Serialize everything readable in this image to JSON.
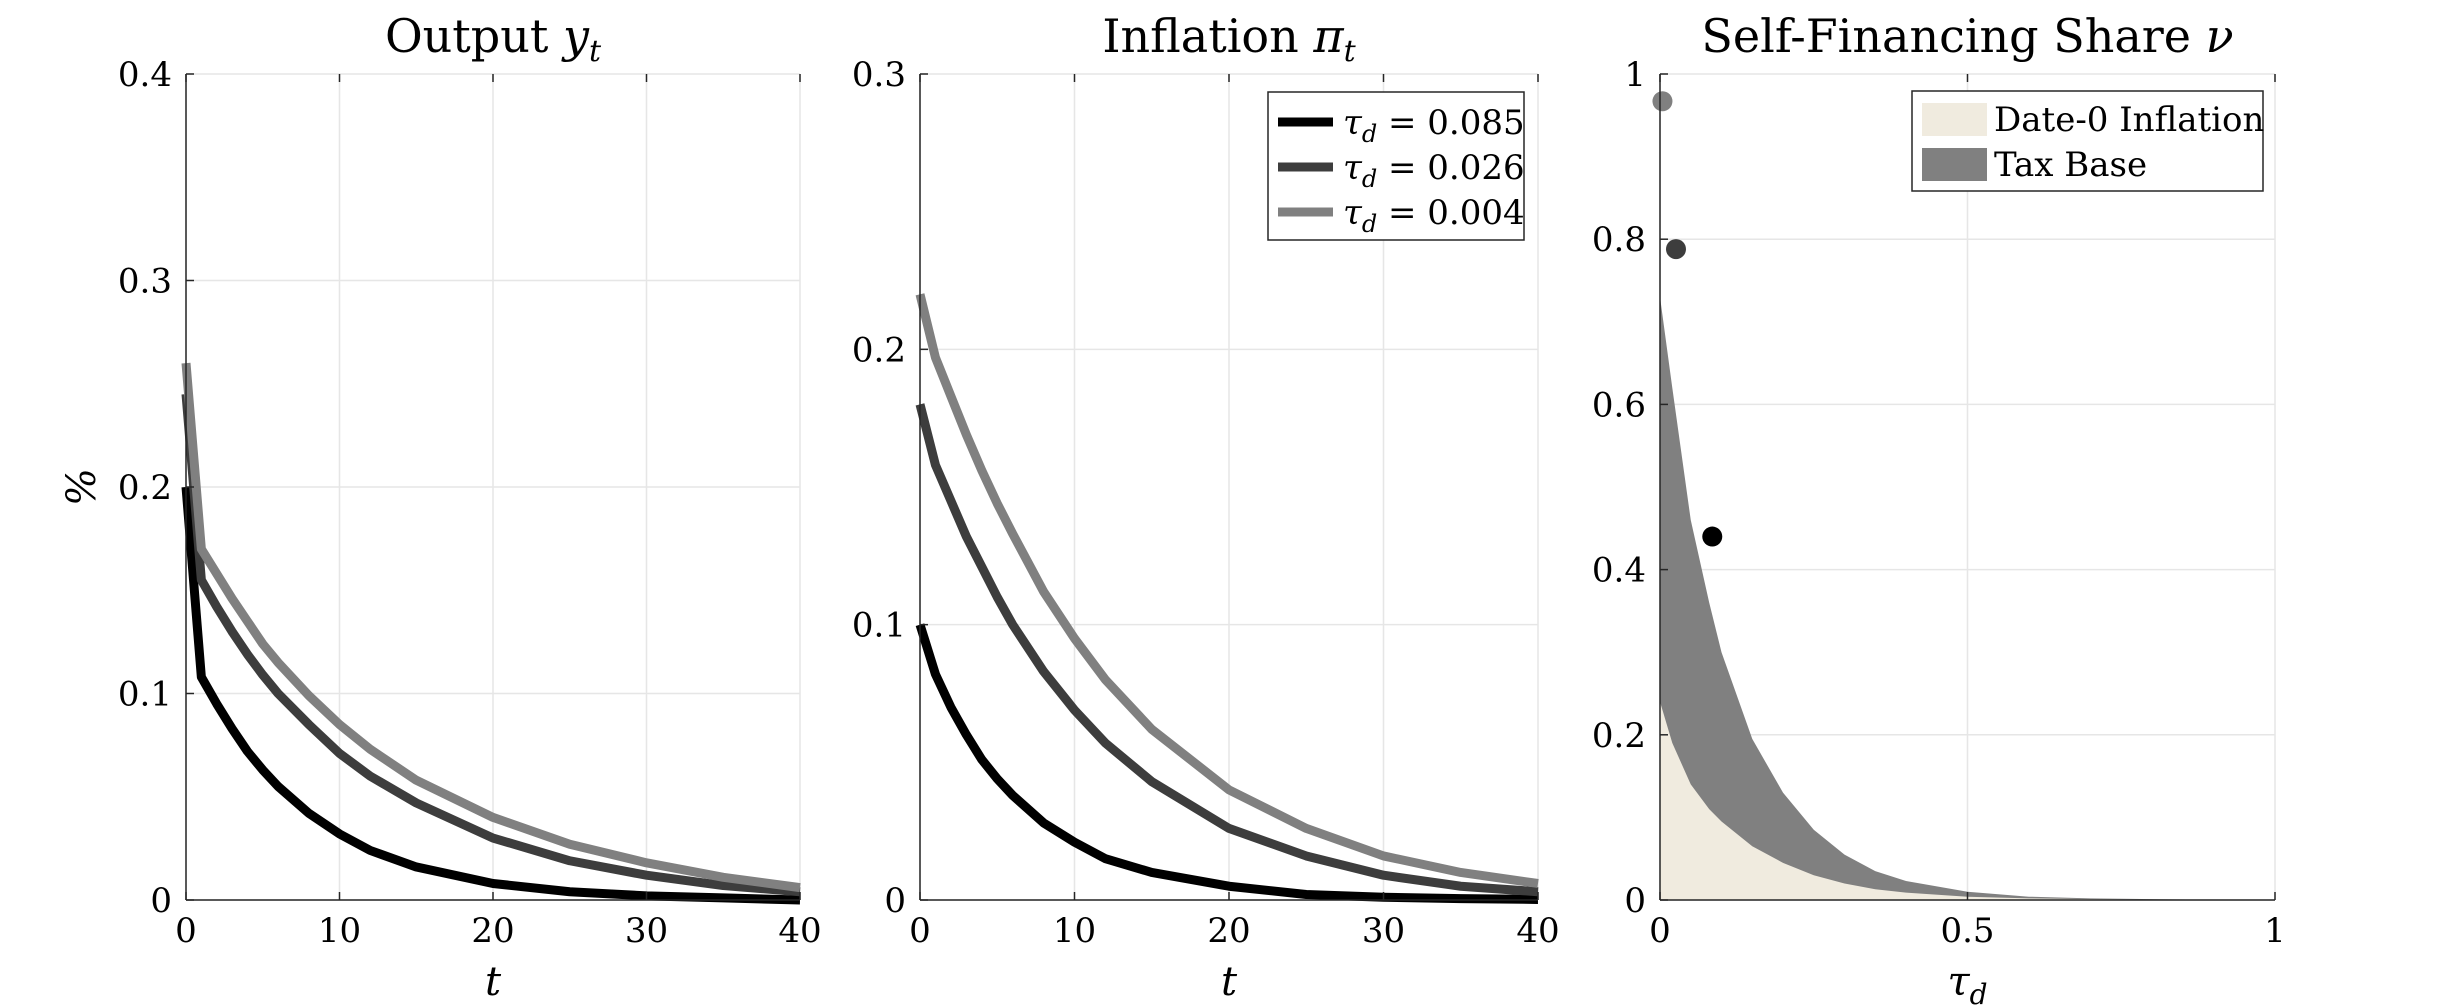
{
  "chart_data": [
    {
      "type": "line",
      "title": "Output yt",
      "title_parts": {
        "base": "Output ",
        "var": "y",
        "sub": "t"
      },
      "xlabel": "t",
      "ylabel": "%",
      "xlim": [
        0,
        40
      ],
      "ylim": [
        0,
        0.4
      ],
      "xticks": [
        0,
        10,
        20,
        30,
        40
      ],
      "xtick_labels": [
        "0",
        "10",
        "20",
        "30",
        "40"
      ],
      "yticks": [
        0,
        0.1,
        0.2,
        0.3,
        0.4
      ],
      "ytick_labels": [
        "0",
        "0.1",
        "0.2",
        "0.3",
        "0.4"
      ],
      "grid": true,
      "legend": "none",
      "series": [
        {
          "color": "#000000",
          "x": [
            0,
            1,
            2,
            3,
            4,
            5,
            6,
            8,
            10,
            12,
            15,
            20,
            25,
            30,
            35,
            40
          ],
          "values": [
            0.2,
            0.108,
            0.095,
            0.083,
            0.072,
            0.063,
            0.055,
            0.042,
            0.032,
            0.024,
            0.016,
            0.008,
            0.004,
            0.002,
            0.001,
            0.0
          ]
        },
        {
          "color": "#3d3d3d",
          "x": [
            0,
            1,
            2,
            3,
            4,
            5,
            6,
            8,
            10,
            12,
            15,
            20,
            25,
            30,
            35,
            40
          ],
          "values": [
            0.245,
            0.155,
            0.142,
            0.13,
            0.119,
            0.109,
            0.1,
            0.085,
            0.071,
            0.06,
            0.047,
            0.03,
            0.019,
            0.012,
            0.007,
            0.004
          ]
        },
        {
          "color": "#808080",
          "x": [
            0,
            1,
            2,
            3,
            4,
            5,
            6,
            8,
            10,
            12,
            15,
            20,
            25,
            30,
            35,
            40
          ],
          "values": [
            0.26,
            0.17,
            0.158,
            0.146,
            0.135,
            0.124,
            0.115,
            0.099,
            0.085,
            0.073,
            0.058,
            0.04,
            0.027,
            0.018,
            0.011,
            0.006
          ]
        }
      ]
    },
    {
      "type": "line",
      "title": "Inflation πt",
      "title_parts": {
        "base": "Inflation ",
        "var": "π",
        "sub": "t"
      },
      "xlabel": "t",
      "ylabel": "",
      "xlim": [
        0,
        40
      ],
      "ylim": [
        0,
        0.3
      ],
      "xticks": [
        0,
        10,
        20,
        30,
        40
      ],
      "xtick_labels": [
        "0",
        "10",
        "20",
        "30",
        "40"
      ],
      "yticks": [
        0,
        0.1,
        0.2,
        0.3
      ],
      "ytick_labels": [
        "0",
        "0.1",
        "0.2",
        "0.3"
      ],
      "grid": true,
      "legend": "top-right",
      "series": [
        {
          "name": "τd = 0.085",
          "name_parts": {
            "var": "τ",
            "sub": "d",
            "rest": " = 0.085"
          },
          "color": "#000000",
          "x": [
            0,
            1,
            2,
            3,
            4,
            5,
            6,
            8,
            10,
            12,
            15,
            20,
            25,
            30,
            35,
            40
          ],
          "values": [
            0.1,
            0.082,
            0.07,
            0.06,
            0.051,
            0.044,
            0.038,
            0.028,
            0.021,
            0.015,
            0.01,
            0.005,
            0.002,
            0.001,
            0.0005,
            0.0002
          ]
        },
        {
          "name": "τd = 0.026",
          "name_parts": {
            "var": "τ",
            "sub": "d",
            "rest": " = 0.026"
          },
          "color": "#3d3d3d",
          "x": [
            0,
            1,
            2,
            3,
            4,
            5,
            6,
            8,
            10,
            12,
            15,
            20,
            25,
            30,
            35,
            40
          ],
          "values": [
            0.18,
            0.158,
            0.145,
            0.132,
            0.121,
            0.11,
            0.1,
            0.083,
            0.069,
            0.057,
            0.043,
            0.026,
            0.016,
            0.009,
            0.005,
            0.003
          ]
        },
        {
          "name": "τd = 0.004",
          "name_parts": {
            "var": "τ",
            "sub": "d",
            "rest": " = 0.004"
          },
          "color": "#808080",
          "x": [
            0,
            1,
            2,
            3,
            4,
            5,
            6,
            8,
            10,
            12,
            15,
            20,
            25,
            30,
            35,
            40
          ],
          "values": [
            0.22,
            0.197,
            0.183,
            0.169,
            0.156,
            0.144,
            0.133,
            0.112,
            0.095,
            0.08,
            0.062,
            0.04,
            0.026,
            0.016,
            0.01,
            0.006
          ]
        }
      ]
    },
    {
      "type": "area",
      "title": "Self-Financing Share ν",
      "title_parts": {
        "base": "Self-Financing Share ",
        "var": "ν",
        "sub": ""
      },
      "xlabel": "τd",
      "xlabel_parts": {
        "var": "τ",
        "sub": "d"
      },
      "ylabel": "",
      "xlim": [
        0,
        1
      ],
      "ylim": [
        0,
        1
      ],
      "xticks": [
        0,
        0.5,
        1
      ],
      "xtick_labels": [
        "0",
        "0.5",
        "1"
      ],
      "yticks": [
        0,
        0.2,
        0.4,
        0.6,
        0.8,
        1
      ],
      "ytick_labels": [
        "0",
        "0.2",
        "0.4",
        "0.6",
        "0.8",
        "1"
      ],
      "grid": true,
      "legend": "top-right",
      "x": [
        0,
        0.02,
        0.05,
        0.08,
        0.1,
        0.15,
        0.2,
        0.25,
        0.3,
        0.35,
        0.4,
        0.5,
        0.6,
        0.7,
        0.8,
        0.9,
        1.0
      ],
      "series": [
        {
          "name": "Date-0 Inflation",
          "color": "#f0ebdf",
          "values": [
            0.24,
            0.19,
            0.14,
            0.11,
            0.095,
            0.065,
            0.045,
            0.03,
            0.02,
            0.013,
            0.009,
            0.004,
            0.002,
            0.001,
            0.0005,
            0.0002,
            0.0
          ]
        },
        {
          "name": "Tax Base",
          "color": "#808080",
          "values": [
            0.73,
            0.62,
            0.46,
            0.36,
            0.3,
            0.195,
            0.13,
            0.085,
            0.055,
            0.035,
            0.023,
            0.01,
            0.004,
            0.002,
            0.001,
            0.0003,
            0.0
          ]
        }
      ],
      "points": [
        {
          "x": 0.004,
          "y": 0.967,
          "color": "#808080"
        },
        {
          "x": 0.026,
          "y": 0.788,
          "color": "#3d3d3d"
        },
        {
          "x": 0.085,
          "y": 0.44,
          "color": "#000000"
        }
      ]
    }
  ]
}
